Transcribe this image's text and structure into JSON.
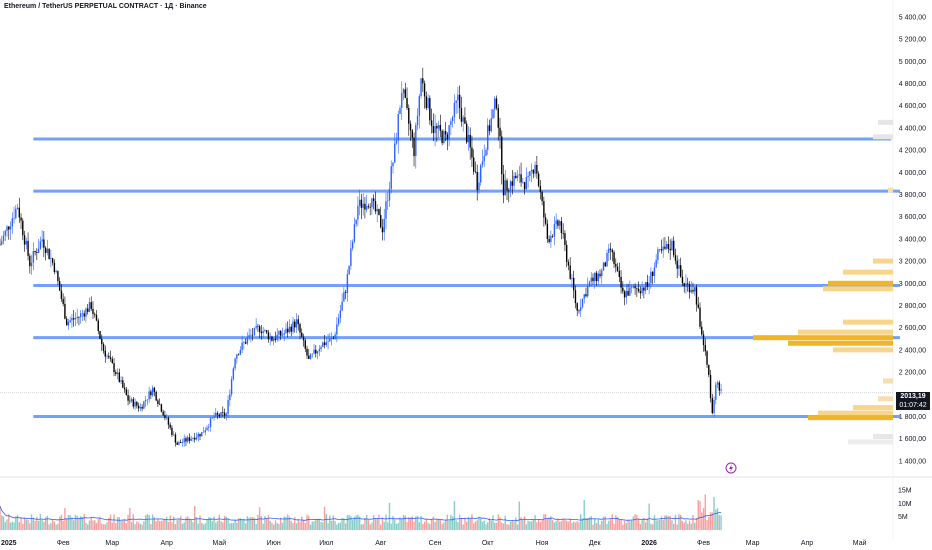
{
  "header": {
    "title": "Ethereum / TetherUS PERPETUAL CONTRACT · 1Д · Binance"
  },
  "price_tag": {
    "last_price": "2013,19",
    "countdown": "01:07:42"
  },
  "chart_data": {
    "type": "candlestick",
    "title": "Ethereum / TetherUS PERPETUAL CONTRACT · 1Д · Binance",
    "price_axis": {
      "ylim": [
        1300,
        5480
      ],
      "ticks": [
        {
          "value": 1400,
          "label": "1 400,00"
        },
        {
          "value": 1600,
          "label": "1 600,00"
        },
        {
          "value": 1800,
          "label": "1 800,00"
        },
        {
          "value": 2200,
          "label": "2 200,00"
        },
        {
          "value": 2400,
          "label": "2 400,00"
        },
        {
          "value": 2600,
          "label": "2 600,00"
        },
        {
          "value": 2800,
          "label": "2 800,00"
        },
        {
          "value": 3000,
          "label": "3 000,00"
        },
        {
          "value": 3200,
          "label": "3 200,00"
        },
        {
          "value": 3400,
          "label": "3 400,00"
        },
        {
          "value": 3600,
          "label": "3 600,00"
        },
        {
          "value": 3800,
          "label": "3 800,00"
        },
        {
          "value": 4000,
          "label": "4 000,00"
        },
        {
          "value": 4200,
          "label": "4 200,00"
        },
        {
          "value": 4400,
          "label": "4 400,00"
        },
        {
          "value": 4600,
          "label": "4 600,00"
        },
        {
          "value": 4800,
          "label": "4 800,00"
        },
        {
          "value": 5000,
          "label": "5 000,00"
        },
        {
          "value": 5200,
          "label": "5 200,00"
        },
        {
          "value": 5400,
          "label": "5 400,00"
        }
      ]
    },
    "volume_axis": {
      "ylim": [
        0,
        18
      ],
      "ticks": [
        {
          "value": 5,
          "label": "5M"
        },
        {
          "value": 10,
          "label": "10M"
        },
        {
          "value": 15,
          "label": "15M"
        }
      ]
    },
    "time_axis": {
      "xlim": [
        "2024-12-27",
        "2026-05-20"
      ],
      "labels": [
        {
          "date": "2025-01-01",
          "label": "2025",
          "bold": true
        },
        {
          "date": "2025-02-01",
          "label": "Фев"
        },
        {
          "date": "2025-03-01",
          "label": "Мар"
        },
        {
          "date": "2025-04-01",
          "label": "Апр"
        },
        {
          "date": "2025-05-01",
          "label": "Май"
        },
        {
          "date": "2025-06-01",
          "label": "Июн"
        },
        {
          "date": "2025-07-01",
          "label": "Июл"
        },
        {
          "date": "2025-08-01",
          "label": "Авг"
        },
        {
          "date": "2025-09-01",
          "label": "Сен"
        },
        {
          "date": "2025-10-01",
          "label": "Окт"
        },
        {
          "date": "2025-11-01",
          "label": "Ноя"
        },
        {
          "date": "2025-12-01",
          "label": "Дек"
        },
        {
          "date": "2026-01-01",
          "label": "2026",
          "bold": true
        },
        {
          "date": "2026-02-01",
          "label": "Фев"
        },
        {
          "date": "2026-03-01",
          "label": "Мар"
        },
        {
          "date": "2026-04-01",
          "label": "Апр"
        },
        {
          "date": "2026-05-01",
          "label": "Май"
        }
      ]
    },
    "price_path": [
      [
        "2024-12-27",
        3350
      ],
      [
        "2025-01-06",
        3700
      ],
      [
        "2025-01-13",
        3180
      ],
      [
        "2025-01-20",
        3400
      ],
      [
        "2025-01-27",
        3150
      ],
      [
        "2025-02-03",
        2650
      ],
      [
        "2025-02-10",
        2700
      ],
      [
        "2025-02-17",
        2800
      ],
      [
        "2025-02-24",
        2400
      ],
      [
        "2025-03-03",
        2200
      ],
      [
        "2025-03-10",
        1950
      ],
      [
        "2025-03-17",
        1880
      ],
      [
        "2025-03-24",
        2050
      ],
      [
        "2025-03-31",
        1800
      ],
      [
        "2025-04-07",
        1550
      ],
      [
        "2025-04-14",
        1600
      ],
      [
        "2025-04-21",
        1650
      ],
      [
        "2025-04-28",
        1800
      ],
      [
        "2025-05-05",
        1820
      ],
      [
        "2025-05-10",
        2350
      ],
      [
        "2025-05-17",
        2500
      ],
      [
        "2025-05-24",
        2600
      ],
      [
        "2025-05-31",
        2500
      ],
      [
        "2025-06-07",
        2550
      ],
      [
        "2025-06-14",
        2650
      ],
      [
        "2025-06-21",
        2300
      ],
      [
        "2025-06-28",
        2450
      ],
      [
        "2025-07-05",
        2500
      ],
      [
        "2025-07-12",
        2950
      ],
      [
        "2025-07-19",
        3700
      ],
      [
        "2025-07-26",
        3750
      ],
      [
        "2025-08-02",
        3500
      ],
      [
        "2025-08-09",
        4200
      ],
      [
        "2025-08-13",
        4750
      ],
      [
        "2025-08-20",
        4200
      ],
      [
        "2025-08-24",
        4850
      ],
      [
        "2025-08-31",
        4400
      ],
      [
        "2025-09-07",
        4300
      ],
      [
        "2025-09-14",
        4650
      ],
      [
        "2025-09-21",
        4200
      ],
      [
        "2025-09-25",
        3900
      ],
      [
        "2025-10-01",
        4350
      ],
      [
        "2025-10-06",
        4650
      ],
      [
        "2025-10-10",
        3850
      ],
      [
        "2025-10-17",
        3950
      ],
      [
        "2025-10-24",
        3900
      ],
      [
        "2025-10-28",
        4100
      ],
      [
        "2025-11-04",
        3400
      ],
      [
        "2025-11-11",
        3550
      ],
      [
        "2025-11-18",
        3000
      ],
      [
        "2025-11-21",
        2750
      ],
      [
        "2025-11-28",
        3000
      ],
      [
        "2025-12-05",
        3100
      ],
      [
        "2025-12-10",
        3300
      ],
      [
        "2025-12-17",
        2900
      ],
      [
        "2025-12-24",
        2950
      ],
      [
        "2025-12-31",
        2970
      ],
      [
        "2026-01-06",
        3250
      ],
      [
        "2026-01-14",
        3350
      ],
      [
        "2026-01-20",
        3000
      ],
      [
        "2026-01-27",
        2950
      ],
      [
        "2026-01-31",
        2550
      ],
      [
        "2026-02-04",
        2150
      ],
      [
        "2026-02-06",
        1850
      ],
      [
        "2026-02-08",
        2100
      ],
      [
        "2026-02-11",
        2013
      ]
    ],
    "horizontal_levels": [
      {
        "price": 4300,
        "from": "2025-01-15",
        "to": "2026-05-19",
        "color": "#5b8ff9"
      },
      {
        "price": 3830,
        "from": "2025-01-15",
        "to": "2026-05-24",
        "color": "#5b8ff9"
      },
      {
        "price": 2980,
        "from": "2025-01-15",
        "to": "2026-05-24",
        "color": "#5b8ff9"
      },
      {
        "price": 2510,
        "from": "2025-01-15",
        "to": "2026-05-24",
        "color": "#5b8ff9"
      },
      {
        "price": 1800,
        "from": "2025-01-15",
        "to": "2026-05-24",
        "color": "#5b8ff9"
      }
    ],
    "volume_profile": [
      {
        "price": 4450,
        "value": 3,
        "color": "#e6e6e6"
      },
      {
        "price": 4320,
        "value": 4,
        "color": "#e6e6e6"
      },
      {
        "price": 3840,
        "value": 1,
        "color": "#f5dfb0"
      },
      {
        "price": 3200,
        "value": 4,
        "color": "#f7d58a"
      },
      {
        "price": 3100,
        "value": 10,
        "color": "#f7d58a"
      },
      {
        "price": 3000,
        "value": 13,
        "color": "#f0b429"
      },
      {
        "price": 2950,
        "value": 14,
        "color": "#f7d58a"
      },
      {
        "price": 2650,
        "value": 10,
        "color": "#f7d58a"
      },
      {
        "price": 2560,
        "value": 19,
        "color": "#f7d58a"
      },
      {
        "price": 2510,
        "value": 28,
        "color": "#f0b429"
      },
      {
        "price": 2460,
        "value": 21,
        "color": "#f0b429"
      },
      {
        "price": 2400,
        "value": 12,
        "color": "#f7d58a"
      },
      {
        "price": 2120,
        "value": 2,
        "color": "#f5dfb0"
      },
      {
        "price": 1960,
        "value": 3,
        "color": "#f5dfb0"
      },
      {
        "price": 1880,
        "value": 8,
        "color": "#f7d58a"
      },
      {
        "price": 1830,
        "value": 15,
        "color": "#f7d58a"
      },
      {
        "price": 1790,
        "value": 17,
        "color": "#f0b429"
      },
      {
        "price": 1620,
        "value": 4,
        "color": "#e6e6e6"
      },
      {
        "price": 1570,
        "value": 9,
        "color": "#ededed"
      }
    ],
    "colors": {
      "up": "#2962ff",
      "down": "#000000",
      "volume_up": "#26a69a",
      "volume_down": "#ef5350",
      "level": "#5b8ff9",
      "volume_ma": "#2962ff",
      "grid": "#f0f3fa",
      "axis_text": "#131722"
    },
    "grid": false,
    "last_price": 2013.19
  }
}
